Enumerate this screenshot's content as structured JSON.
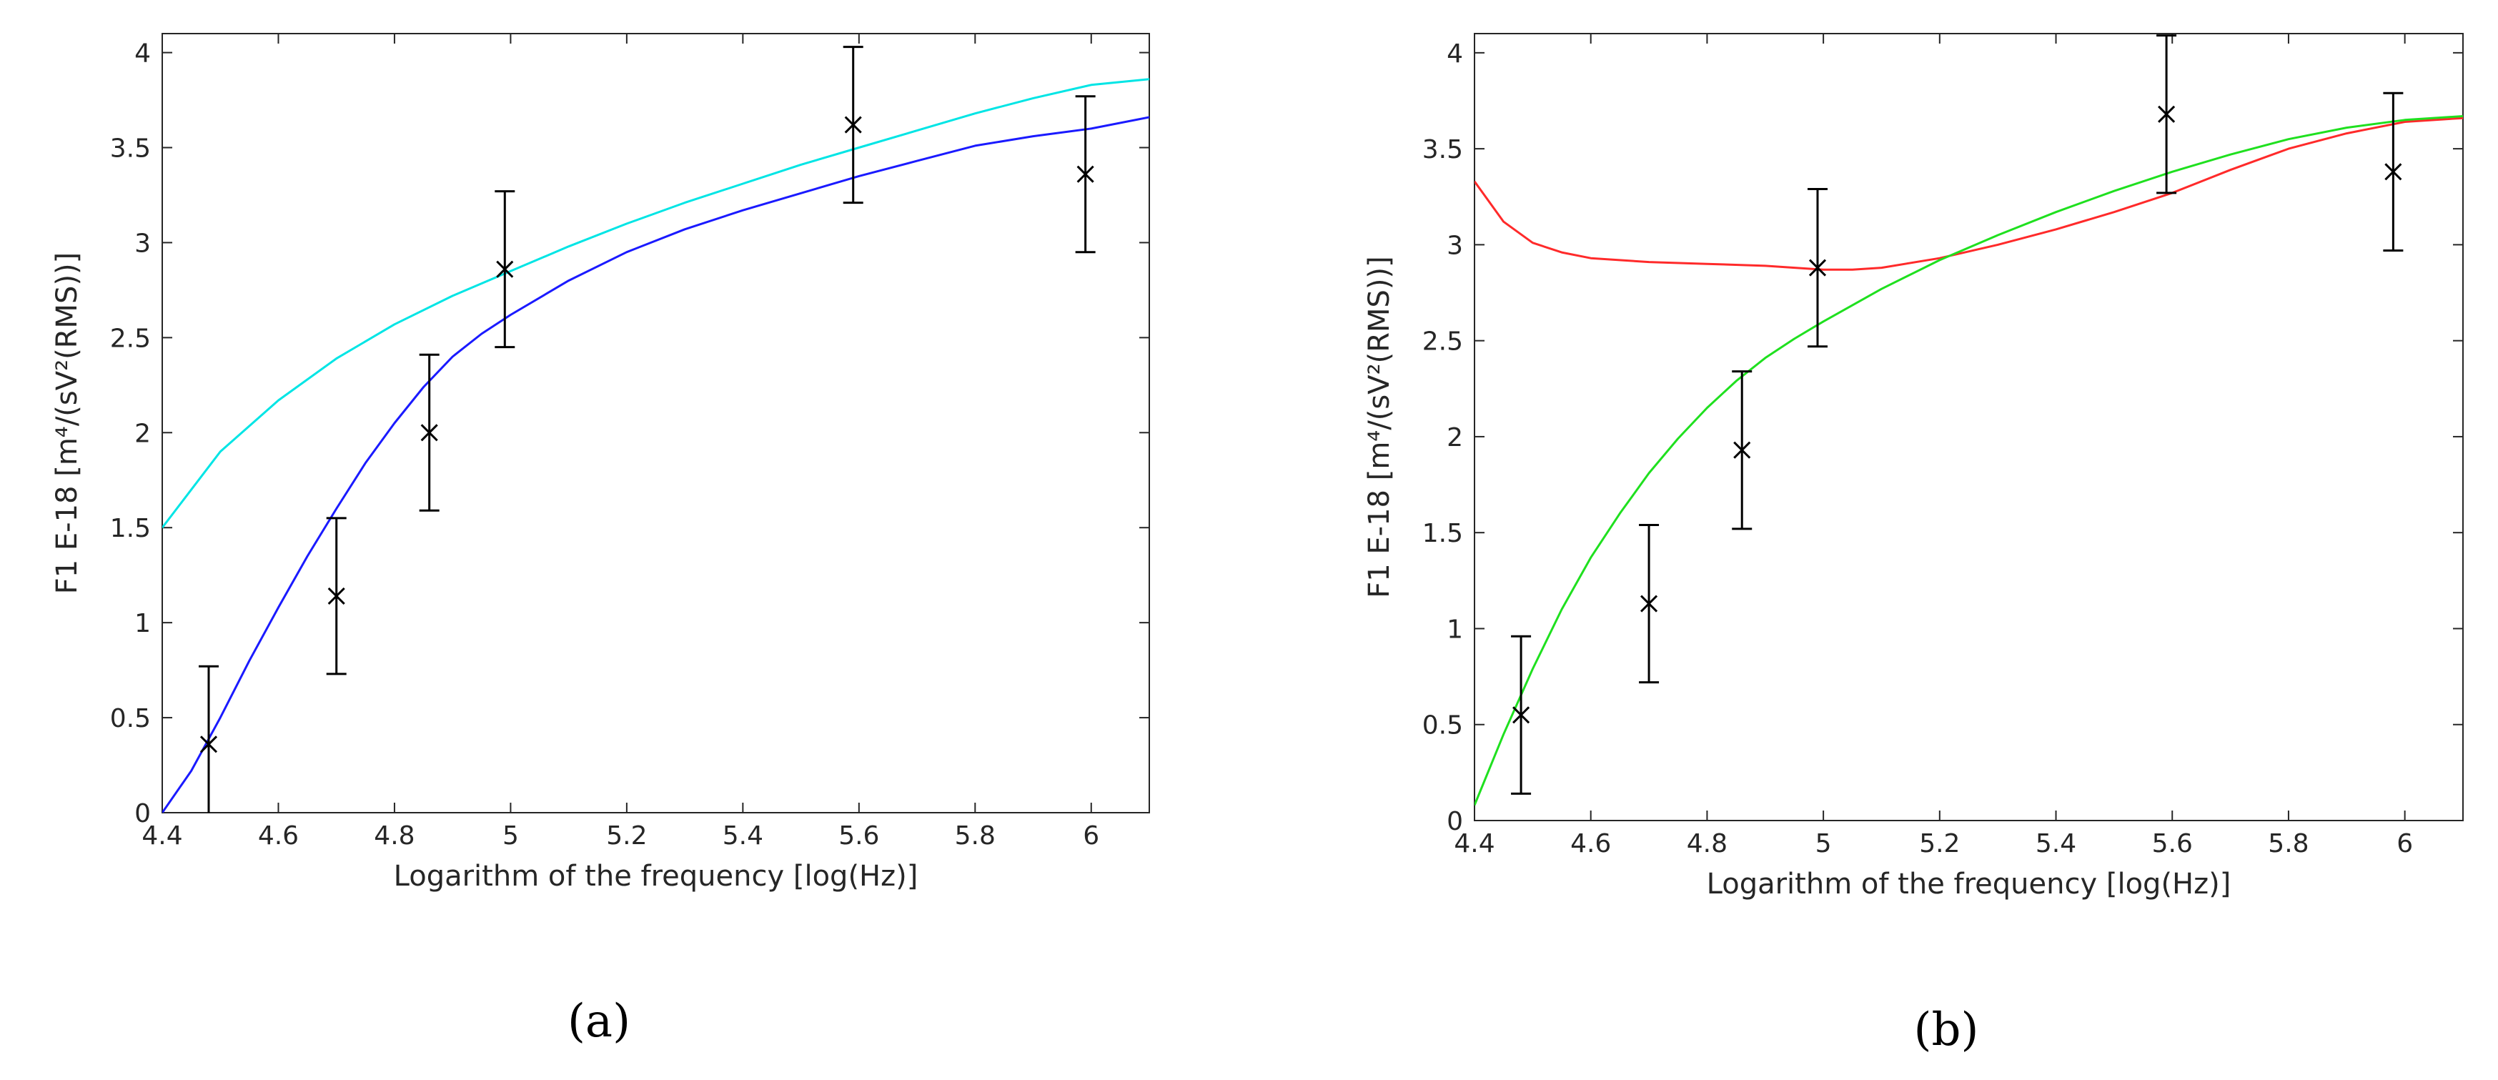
{
  "chart_data": [
    {
      "type": "line",
      "caption": "(a)",
      "xlabel": "Logarithm of the frequency [log(Hz)]",
      "ylabel": "F1 E-18 [m⁴/(sV²(RMS))]",
      "xlim": [
        4.4,
        6.1
      ],
      "ylim": [
        0,
        4.1
      ],
      "xticks": [
        4.4,
        4.6,
        4.8,
        5,
        5.2,
        5.4,
        5.6,
        5.8,
        6
      ],
      "xtick_labels": [
        "4.4",
        "4.6",
        "4.8",
        "5",
        "5.2",
        "5.4",
        "5.6",
        "5.8",
        "6"
      ],
      "yticks": [
        0,
        0.5,
        1,
        1.5,
        2,
        2.5,
        3,
        3.5,
        4
      ],
      "ytick_labels": [
        "0",
        "0.5",
        "1",
        "1.5",
        "2",
        "2.5",
        "3",
        "3.5",
        "4"
      ],
      "grid": false,
      "series": [
        {
          "name": "cyan-fit",
          "color": "#00e5e5",
          "x": [
            4.4,
            4.5,
            4.6,
            4.7,
            4.8,
            4.9,
            5.0,
            5.1,
            5.2,
            5.3,
            5.4,
            5.5,
            5.6,
            5.7,
            5.8,
            5.9,
            6.0,
            6.1
          ],
          "y": [
            1.5,
            1.9,
            2.17,
            2.39,
            2.57,
            2.72,
            2.85,
            2.98,
            3.1,
            3.21,
            3.31,
            3.41,
            3.5,
            3.59,
            3.68,
            3.76,
            3.83,
            3.86
          ]
        },
        {
          "name": "blue-fit",
          "color": "#1a1aff",
          "x": [
            4.4,
            4.45,
            4.5,
            4.55,
            4.6,
            4.65,
            4.7,
            4.75,
            4.8,
            4.85,
            4.9,
            4.95,
            5.0,
            5.1,
            5.2,
            5.3,
            5.4,
            5.5,
            5.6,
            5.7,
            5.8,
            5.9,
            6.0,
            6.1
          ],
          "y": [
            0.0,
            0.22,
            0.5,
            0.8,
            1.08,
            1.35,
            1.6,
            1.84,
            2.05,
            2.24,
            2.4,
            2.52,
            2.62,
            2.8,
            2.95,
            3.07,
            3.17,
            3.26,
            3.35,
            3.43,
            3.51,
            3.56,
            3.6,
            3.66
          ]
        }
      ],
      "errorbars": {
        "x": [
          4.48,
          4.7,
          4.86,
          4.99,
          5.59,
          5.99
        ],
        "y": [
          0.36,
          1.14,
          2.0,
          2.86,
          3.62,
          3.36
        ],
        "err": [
          0.41,
          0.41,
          0.41,
          0.41,
          0.41,
          0.41
        ],
        "marker": "x",
        "color": "#000000"
      }
    },
    {
      "type": "line",
      "caption": "(b)",
      "xlabel": "Logarithm of the frequency [log(Hz)]",
      "ylabel": "F1 E-18 [m⁴/(sV²(RMS))]",
      "xlim": [
        4.4,
        6.1
      ],
      "ylim": [
        0,
        4.1
      ],
      "xticks": [
        4.4,
        4.6,
        4.8,
        5,
        5.2,
        5.4,
        5.6,
        5.8,
        6
      ],
      "xtick_labels": [
        "4.4",
        "4.6",
        "4.8",
        "5",
        "5.2",
        "5.4",
        "5.6",
        "5.8",
        "6"
      ],
      "yticks": [
        0,
        0.5,
        1,
        1.5,
        2,
        2.5,
        3,
        3.5,
        4
      ],
      "ytick_labels": [
        "0",
        "0.5",
        "1",
        "1.5",
        "2",
        "2.5",
        "3",
        "3.5",
        "4"
      ],
      "grid": false,
      "series": [
        {
          "name": "red-fit",
          "color": "#ff2a2a",
          "x": [
            4.4,
            4.45,
            4.5,
            4.55,
            4.6,
            4.7,
            4.8,
            4.9,
            5.0,
            5.05,
            5.1,
            5.2,
            5.3,
            5.4,
            5.5,
            5.6,
            5.7,
            5.8,
            5.9,
            6.0,
            6.1
          ],
          "y": [
            3.33,
            3.12,
            3.01,
            2.96,
            2.93,
            2.91,
            2.9,
            2.89,
            2.87,
            2.87,
            2.88,
            2.93,
            3.0,
            3.08,
            3.17,
            3.27,
            3.39,
            3.5,
            3.58,
            3.64,
            3.66
          ]
        },
        {
          "name": "green-fit",
          "color": "#1fe01f",
          "x": [
            4.4,
            4.45,
            4.5,
            4.55,
            4.6,
            4.65,
            4.7,
            4.75,
            4.8,
            4.85,
            4.9,
            4.95,
            5.0,
            5.1,
            5.2,
            5.3,
            5.4,
            5.5,
            5.6,
            5.7,
            5.8,
            5.9,
            6.0,
            6.1
          ],
          "y": [
            0.08,
            0.45,
            0.79,
            1.1,
            1.37,
            1.6,
            1.81,
            1.99,
            2.15,
            2.29,
            2.41,
            2.51,
            2.6,
            2.77,
            2.92,
            3.05,
            3.17,
            3.28,
            3.38,
            3.47,
            3.55,
            3.61,
            3.65,
            3.67
          ]
        }
      ],
      "errorbars": {
        "x": [
          4.48,
          4.7,
          4.86,
          4.99,
          5.59,
          5.98
        ],
        "y": [
          0.55,
          1.13,
          1.93,
          2.88,
          3.68,
          3.38
        ],
        "err": [
          0.41,
          0.41,
          0.41,
          0.41,
          0.41,
          0.41
        ],
        "marker": "x",
        "color": "#000000"
      }
    }
  ]
}
